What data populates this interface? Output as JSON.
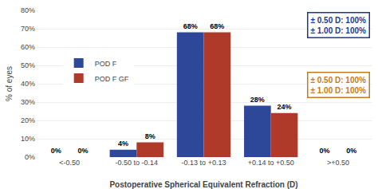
{
  "chart_data": {
    "type": "bar",
    "xlabel": "Postoperative Spherical Equivalent Refraction (D)",
    "ylabel": "% of eyes",
    "categories": [
      "<-0.50",
      "-0.50 to -0.14",
      "-0.13 to +0.13",
      "+0.14 to +0.50",
      ">+0.50"
    ],
    "series": [
      {
        "name": "POD F",
        "color": "#2E4899",
        "values": [
          0,
          4,
          68,
          28,
          0
        ],
        "value_labels": [
          "0%",
          "4%",
          "68%",
          "28%",
          "0%"
        ]
      },
      {
        "name": "POD F GF",
        "color": "#B03A2A",
        "values": [
          0,
          8,
          68,
          24,
          0
        ],
        "value_labels": [
          "0%",
          "8%",
          "68%",
          "24%",
          "0%"
        ]
      }
    ],
    "ylim": [
      0,
      80
    ],
    "yticks": [
      {
        "value": 0,
        "label": "0%"
      },
      {
        "value": 10,
        "label": "10%"
      },
      {
        "value": 20,
        "label": "20%"
      },
      {
        "value": 30,
        "label": "30%"
      },
      {
        "value": 40,
        "label": "40%"
      },
      {
        "value": 50,
        "label": "50%"
      },
      {
        "value": 60,
        "label": "60%"
      },
      {
        "value": 70,
        "label": "70%"
      },
      {
        "value": 80,
        "label": "80%"
      }
    ],
    "grid": true,
    "legend": "upper left",
    "data_labels": true,
    "annotations": [
      {
        "lines": [
          "± 0.50 D: 100%",
          "± 1.00 D: 100%"
        ],
        "color": "#1A3A8F"
      },
      {
        "lines": [
          "± 0.50 D: 100%",
          "± 1.00 D: 100%"
        ],
        "color": "#C47A20"
      }
    ]
  }
}
